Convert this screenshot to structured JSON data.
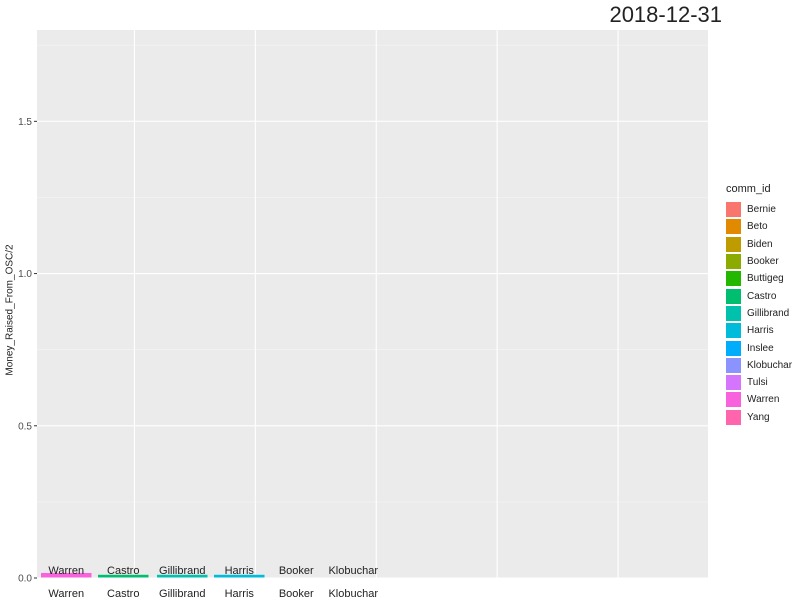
{
  "frame_label": "2018-12-31",
  "chart_data": {
    "type": "bar",
    "ylabel": "Money_Raised_From_OSC/2",
    "ylim": [
      0,
      1.8
    ],
    "yticks": [
      0.0,
      0.5,
      1.0,
      1.5
    ],
    "ytick_labels": [
      "0.0",
      "0.5",
      "1.0",
      "1.5"
    ],
    "grid": true,
    "legend_title": "comm_id",
    "legend_position": "right",
    "legend": [
      {
        "name": "Bernie",
        "color": "#F8766D"
      },
      {
        "name": "Beto",
        "color": "#E18A00"
      },
      {
        "name": "Biden",
        "color": "#BE9C00"
      },
      {
        "name": "Booker",
        "color": "#8CAB00"
      },
      {
        "name": "Buttigeg",
        "color": "#24B700"
      },
      {
        "name": "Castro",
        "color": "#00BE70"
      },
      {
        "name": "Gillibrand",
        "color": "#00C1AB"
      },
      {
        "name": "Harris",
        "color": "#00BBDA"
      },
      {
        "name": "Inslee",
        "color": "#00ACFC"
      },
      {
        "name": "Klobuchar",
        "color": "#8B93FF"
      },
      {
        "name": "Tulsi",
        "color": "#D575FE"
      },
      {
        "name": "Warren",
        "color": "#F962DD"
      },
      {
        "name": "Yang",
        "color": "#FF65AC"
      }
    ],
    "bars": [
      {
        "name": "Warren",
        "value": 0.01,
        "color": "#F962DD"
      },
      {
        "name": "Castro",
        "value": 0.004,
        "color": "#00BE70"
      },
      {
        "name": "Gillibrand",
        "value": 0.004,
        "color": "#00C1AB"
      },
      {
        "name": "Harris",
        "value": 0.004,
        "color": "#00BBDA"
      },
      {
        "name": "Booker",
        "value": 0.0,
        "color": "#8CAB00"
      },
      {
        "name": "Klobuchar",
        "value": 0.0,
        "color": "#8B93FF"
      }
    ]
  }
}
